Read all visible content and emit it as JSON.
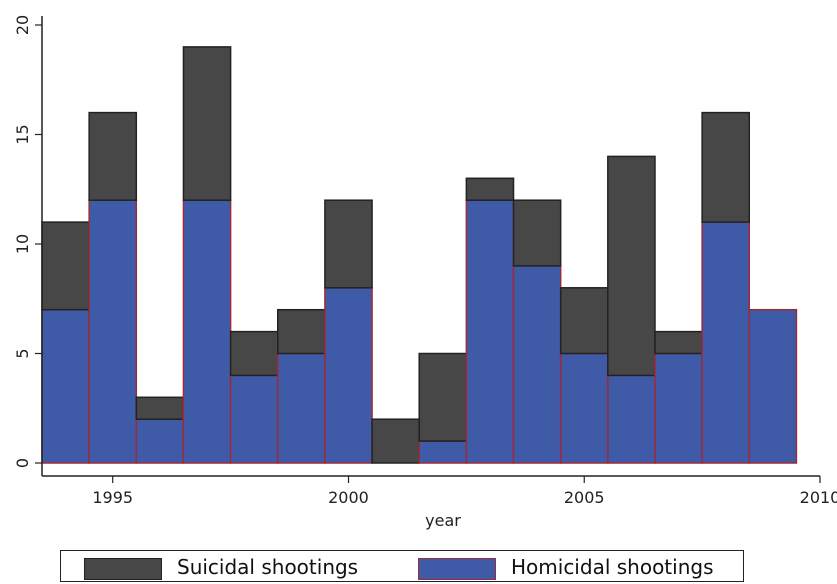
{
  "chart_data": {
    "type": "bar",
    "stacked": true,
    "x": [
      1994,
      1995,
      1996,
      1997,
      1998,
      1999,
      2000,
      2001,
      2002,
      2003,
      2004,
      2005,
      2006,
      2007,
      2008,
      2009
    ],
    "series": [
      {
        "name": "Homicidal shootings",
        "color": "#3f5ba8",
        "edge": "#9b2b3a",
        "values": [
          7,
          12,
          2,
          12,
          4,
          5,
          8,
          0,
          1,
          12,
          9,
          5,
          4,
          5,
          11,
          7
        ]
      },
      {
        "name": "Suicidal shootings",
        "color": "#474747",
        "edge": "#222222",
        "values": [
          4,
          4,
          1,
          7,
          2,
          2,
          4,
          2,
          4,
          1,
          3,
          3,
          10,
          1,
          5,
          0
        ]
      }
    ],
    "xlabel": "year",
    "ylabel": "",
    "xlim": [
      1993.5,
      2010
    ],
    "ylim": [
      0,
      20
    ],
    "xticks": [
      1995,
      2000,
      2005,
      2010
    ],
    "yticks": [
      0,
      5,
      10,
      15,
      20
    ],
    "grid": false,
    "legend": {
      "position": "bottom",
      "entries": [
        "Suicidal shootings",
        "Homicidal shootings"
      ]
    }
  }
}
